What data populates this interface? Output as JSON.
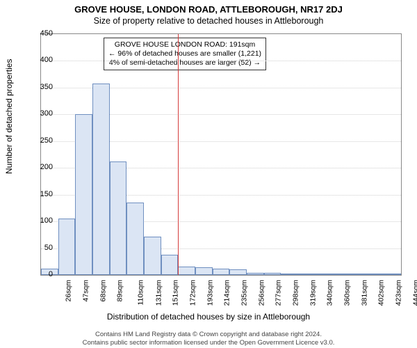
{
  "title": "GROVE HOUSE, LONDON ROAD, ATTLEBOROUGH, NR17 2DJ",
  "subtitle": "Size of property relative to detached houses in Attleborough",
  "ylabel": "Number of detached properties",
  "xlabel": "Distribution of detached houses by size in Attleborough",
  "footer_line1": "Contains HM Land Registry data © Crown copyright and database right 2024.",
  "footer_line2": "Contains public sector information licensed under the Open Government Licence v3.0.",
  "callout_line1": "GROVE HOUSE LONDON ROAD: 191sqm",
  "callout_line2": "← 96% of detached houses are smaller (1,221)",
  "callout_line3": "4% of semi-detached houses are larger (52) →",
  "chart": {
    "type": "histogram",
    "ylim": [
      0,
      450
    ],
    "ytick_step": 50,
    "yticks": [
      0,
      50,
      100,
      150,
      200,
      250,
      300,
      350,
      400,
      450
    ],
    "xticks": [
      "26sqm",
      "47sqm",
      "68sqm",
      "89sqm",
      "110sqm",
      "131sqm",
      "151sqm",
      "172sqm",
      "193sqm",
      "214sqm",
      "235sqm",
      "256sqm",
      "277sqm",
      "298sqm",
      "319sqm",
      "340sqm",
      "360sqm",
      "381sqm",
      "402sqm",
      "423sqm",
      "444sqm"
    ],
    "values": [
      12,
      105,
      300,
      358,
      212,
      135,
      72,
      38,
      15,
      14,
      12,
      10,
      4,
      4,
      0,
      3,
      0,
      2,
      3,
      0,
      2
    ],
    "bar_fill": "#dbe5f4",
    "bar_stroke": "#6f8fc0",
    "grid_color": "#cfcfcf",
    "background_color": "#ffffff",
    "marker_value_sqm": 191,
    "marker_bin_index": 8,
    "marker_color": "#d43b3b",
    "title_fontsize": 13,
    "subtitle_fontsize": 12.5,
    "axis_label_fontsize": 12,
    "tick_fontsize": 11,
    "callout_fontsize": 10.5
  }
}
